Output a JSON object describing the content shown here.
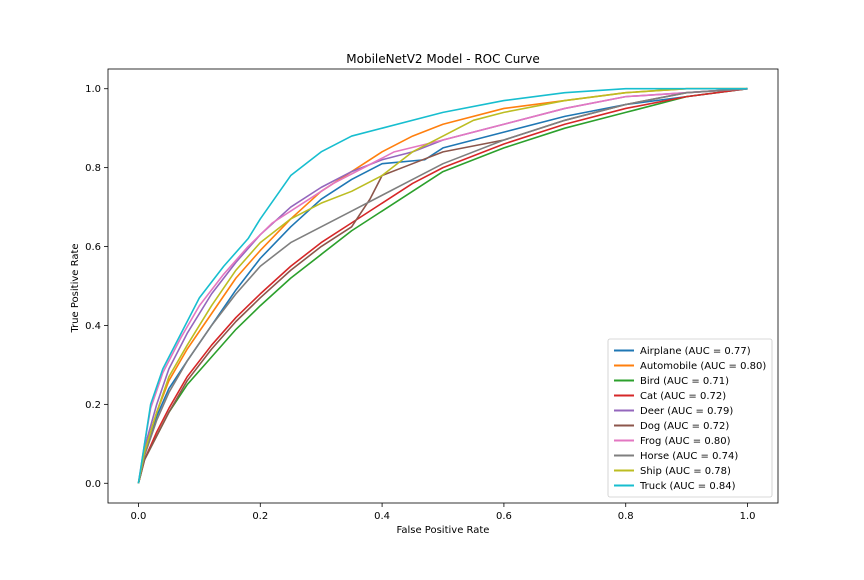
{
  "chart_data": {
    "type": "line",
    "title": "MobileNetV2 Model - ROC Curve",
    "xlabel": "False Positive Rate",
    "ylabel": "True Positive Rate",
    "xlim": [
      -0.05,
      1.05
    ],
    "ylim": [
      -0.05,
      1.05
    ],
    "xticks": [
      0.0,
      0.2,
      0.4,
      0.6,
      0.8,
      1.0
    ],
    "yticks": [
      0.0,
      0.2,
      0.4,
      0.6,
      0.8,
      1.0
    ],
    "grid": false,
    "legend_position": "lower-right",
    "series": [
      {
        "name": "Airplane (AUC = 0.77)",
        "color": "#1f77b4",
        "points": [
          [
            0,
            0
          ],
          [
            0.01,
            0.08
          ],
          [
            0.03,
            0.17
          ],
          [
            0.05,
            0.24
          ],
          [
            0.08,
            0.31
          ],
          [
            0.12,
            0.4
          ],
          [
            0.16,
            0.49
          ],
          [
            0.2,
            0.57
          ],
          [
            0.25,
            0.65
          ],
          [
            0.3,
            0.72
          ],
          [
            0.35,
            0.77
          ],
          [
            0.4,
            0.81
          ],
          [
            0.47,
            0.82
          ],
          [
            0.5,
            0.85
          ],
          [
            0.6,
            0.89
          ],
          [
            0.7,
            0.93
          ],
          [
            0.8,
            0.96
          ],
          [
            0.9,
            0.98
          ],
          [
            1.0,
            1.0
          ]
        ]
      },
      {
        "name": "Automobile (AUC = 0.80)",
        "color": "#ff7f0e",
        "points": [
          [
            0,
            0
          ],
          [
            0.01,
            0.08
          ],
          [
            0.03,
            0.18
          ],
          [
            0.05,
            0.26
          ],
          [
            0.08,
            0.34
          ],
          [
            0.12,
            0.43
          ],
          [
            0.16,
            0.52
          ],
          [
            0.2,
            0.59
          ],
          [
            0.25,
            0.67
          ],
          [
            0.3,
            0.74
          ],
          [
            0.35,
            0.79
          ],
          [
            0.4,
            0.84
          ],
          [
            0.45,
            0.88
          ],
          [
            0.5,
            0.91
          ],
          [
            0.6,
            0.95
          ],
          [
            0.7,
            0.97
          ],
          [
            0.8,
            0.99
          ],
          [
            0.9,
            1.0
          ],
          [
            1.0,
            1.0
          ]
        ]
      },
      {
        "name": "Bird (AUC = 0.71)",
        "color": "#2ca02c",
        "points": [
          [
            0,
            0
          ],
          [
            0.01,
            0.06
          ],
          [
            0.03,
            0.12
          ],
          [
            0.05,
            0.18
          ],
          [
            0.08,
            0.25
          ],
          [
            0.12,
            0.32
          ],
          [
            0.16,
            0.39
          ],
          [
            0.2,
            0.45
          ],
          [
            0.25,
            0.52
          ],
          [
            0.3,
            0.58
          ],
          [
            0.35,
            0.64
          ],
          [
            0.4,
            0.69
          ],
          [
            0.45,
            0.74
          ],
          [
            0.5,
            0.79
          ],
          [
            0.6,
            0.85
          ],
          [
            0.7,
            0.9
          ],
          [
            0.8,
            0.94
          ],
          [
            0.9,
            0.98
          ],
          [
            1.0,
            1.0
          ]
        ]
      },
      {
        "name": "Cat (AUC = 0.72)",
        "color": "#d62728",
        "points": [
          [
            0,
            0
          ],
          [
            0.01,
            0.06
          ],
          [
            0.03,
            0.13
          ],
          [
            0.05,
            0.19
          ],
          [
            0.08,
            0.27
          ],
          [
            0.12,
            0.35
          ],
          [
            0.16,
            0.42
          ],
          [
            0.2,
            0.48
          ],
          [
            0.25,
            0.55
          ],
          [
            0.3,
            0.61
          ],
          [
            0.35,
            0.66
          ],
          [
            0.4,
            0.71
          ],
          [
            0.45,
            0.76
          ],
          [
            0.5,
            0.8
          ],
          [
            0.6,
            0.86
          ],
          [
            0.7,
            0.91
          ],
          [
            0.8,
            0.95
          ],
          [
            0.9,
            0.98
          ],
          [
            1.0,
            1.0
          ]
        ]
      },
      {
        "name": "Deer (AUC = 0.79)",
        "color": "#9467bd",
        "points": [
          [
            0,
            0
          ],
          [
            0.01,
            0.09
          ],
          [
            0.03,
            0.2
          ],
          [
            0.05,
            0.29
          ],
          [
            0.08,
            0.38
          ],
          [
            0.12,
            0.48
          ],
          [
            0.16,
            0.56
          ],
          [
            0.2,
            0.63
          ],
          [
            0.25,
            0.7
          ],
          [
            0.3,
            0.75
          ],
          [
            0.35,
            0.79
          ],
          [
            0.4,
            0.82
          ],
          [
            0.45,
            0.84
          ],
          [
            0.5,
            0.87
          ],
          [
            0.6,
            0.91
          ],
          [
            0.7,
            0.95
          ],
          [
            0.8,
            0.98
          ],
          [
            0.9,
            0.99
          ],
          [
            1.0,
            1.0
          ]
        ]
      },
      {
        "name": "Dog (AUC = 0.72)",
        "color": "#8c564b",
        "points": [
          [
            0,
            0
          ],
          [
            0.01,
            0.06
          ],
          [
            0.03,
            0.12
          ],
          [
            0.05,
            0.18
          ],
          [
            0.08,
            0.26
          ],
          [
            0.12,
            0.34
          ],
          [
            0.16,
            0.41
          ],
          [
            0.2,
            0.47
          ],
          [
            0.25,
            0.54
          ],
          [
            0.3,
            0.6
          ],
          [
            0.35,
            0.65
          ],
          [
            0.38,
            0.72
          ],
          [
            0.4,
            0.78
          ],
          [
            0.45,
            0.81
          ],
          [
            0.5,
            0.84
          ],
          [
            0.6,
            0.87
          ],
          [
            0.7,
            0.92
          ],
          [
            0.8,
            0.96
          ],
          [
            0.9,
            0.99
          ],
          [
            1.0,
            1.0
          ]
        ]
      },
      {
        "name": "Frog (AUC = 0.80)",
        "color": "#e377c2",
        "points": [
          [
            0,
            0
          ],
          [
            0.01,
            0.1
          ],
          [
            0.02,
            0.19
          ],
          [
            0.04,
            0.28
          ],
          [
            0.07,
            0.37
          ],
          [
            0.1,
            0.45
          ],
          [
            0.14,
            0.53
          ],
          [
            0.18,
            0.6
          ],
          [
            0.22,
            0.66
          ],
          [
            0.27,
            0.71
          ],
          [
            0.32,
            0.76
          ],
          [
            0.37,
            0.8
          ],
          [
            0.42,
            0.84
          ],
          [
            0.5,
            0.87
          ],
          [
            0.6,
            0.91
          ],
          [
            0.7,
            0.95
          ],
          [
            0.8,
            0.98
          ],
          [
            0.9,
            0.99
          ],
          [
            1.0,
            1.0
          ]
        ]
      },
      {
        "name": "Horse (AUC = 0.74)",
        "color": "#7f7f7f",
        "points": [
          [
            0,
            0
          ],
          [
            0.01,
            0.07
          ],
          [
            0.03,
            0.16
          ],
          [
            0.05,
            0.23
          ],
          [
            0.08,
            0.31
          ],
          [
            0.12,
            0.4
          ],
          [
            0.16,
            0.48
          ],
          [
            0.2,
            0.55
          ],
          [
            0.25,
            0.61
          ],
          [
            0.3,
            0.65
          ],
          [
            0.35,
            0.69
          ],
          [
            0.4,
            0.73
          ],
          [
            0.45,
            0.77
          ],
          [
            0.5,
            0.81
          ],
          [
            0.6,
            0.87
          ],
          [
            0.7,
            0.92
          ],
          [
            0.8,
            0.96
          ],
          [
            0.9,
            0.99
          ],
          [
            1.0,
            1.0
          ]
        ]
      },
      {
        "name": "Ship (AUC = 0.78)",
        "color": "#bcbd22",
        "points": [
          [
            0,
            0
          ],
          [
            0.01,
            0.08
          ],
          [
            0.03,
            0.18
          ],
          [
            0.05,
            0.27
          ],
          [
            0.08,
            0.35
          ],
          [
            0.12,
            0.45
          ],
          [
            0.16,
            0.54
          ],
          [
            0.2,
            0.61
          ],
          [
            0.25,
            0.67
          ],
          [
            0.3,
            0.71
          ],
          [
            0.35,
            0.74
          ],
          [
            0.4,
            0.78
          ],
          [
            0.45,
            0.84
          ],
          [
            0.5,
            0.88
          ],
          [
            0.55,
            0.92
          ],
          [
            0.6,
            0.94
          ],
          [
            0.7,
            0.97
          ],
          [
            0.8,
            0.99
          ],
          [
            0.9,
            1.0
          ],
          [
            1.0,
            1.0
          ]
        ]
      },
      {
        "name": "Truck (AUC = 0.84)",
        "color": "#17becf",
        "points": [
          [
            0,
            0
          ],
          [
            0.01,
            0.1
          ],
          [
            0.02,
            0.2
          ],
          [
            0.04,
            0.29
          ],
          [
            0.07,
            0.38
          ],
          [
            0.1,
            0.47
          ],
          [
            0.14,
            0.55
          ],
          [
            0.18,
            0.62
          ],
          [
            0.2,
            0.67
          ],
          [
            0.25,
            0.78
          ],
          [
            0.3,
            0.84
          ],
          [
            0.35,
            0.88
          ],
          [
            0.4,
            0.9
          ],
          [
            0.5,
            0.94
          ],
          [
            0.6,
            0.97
          ],
          [
            0.7,
            0.99
          ],
          [
            0.8,
            1.0
          ],
          [
            0.9,
            1.0
          ],
          [
            1.0,
            1.0
          ]
        ]
      }
    ]
  }
}
